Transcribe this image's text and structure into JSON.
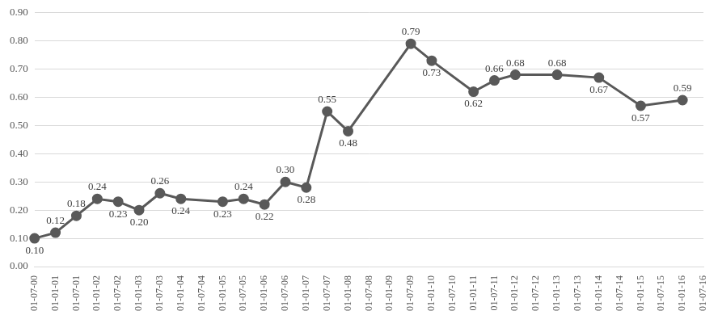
{
  "chart_data": {
    "type": "line",
    "categories": [
      "01-07-00",
      "01-01-01",
      "01-07-01",
      "01-01-02",
      "01-07-02",
      "01-01-03",
      "01-07-03",
      "01-01-04",
      "01-07-04",
      "01-01-05",
      "01-07-05",
      "01-01-06",
      "01-07-06",
      "01-01-07",
      "01-07-07",
      "01-01-08",
      "01-07-08",
      "01-01-09",
      "01-07-09",
      "01-01-10",
      "01-07-10",
      "01-01-11",
      "01-07-11",
      "01-01-12",
      "01-07-12",
      "01-01-13",
      "01-07-13",
      "01-01-14",
      "01-07-14",
      "01-01-15",
      "01-07-15",
      "01-01-16",
      "01-07-16"
    ],
    "values": [
      0.1,
      0.12,
      0.18,
      0.24,
      0.23,
      0.2,
      0.26,
      0.24,
      null,
      0.23,
      0.24,
      0.22,
      0.3,
      0.28,
      0.55,
      0.48,
      null,
      null,
      0.79,
      0.73,
      null,
      0.62,
      0.66,
      0.68,
      null,
      0.68,
      null,
      0.67,
      null,
      0.57,
      null,
      0.59,
      null
    ],
    "value_labels": [
      "0.10",
      "0.12",
      "0.18",
      "0.24",
      "0.23",
      "0.20",
      "0.26",
      "0.24",
      null,
      "0.23",
      "0.24",
      "0.22",
      "0.30",
      "0.28",
      "0.55",
      "0.48",
      null,
      null,
      "0.79",
      "0.73",
      null,
      "0.62",
      "0.66",
      "0.68",
      null,
      "0.68",
      null,
      "0.67",
      null,
      "0.57",
      null,
      "0.59",
      null
    ],
    "color": "#595959",
    "marker": "circle",
    "ylim": [
      0,
      0.9
    ],
    "yticks": [
      {
        "value": 0,
        "label": "0.00"
      },
      {
        "value": 0.1,
        "label": "0.10"
      },
      {
        "value": 0.2,
        "label": "0.20"
      },
      {
        "value": 0.3,
        "label": "0.30"
      },
      {
        "value": 0.4,
        "label": "0.40"
      },
      {
        "value": 0.5,
        "label": "0.50"
      },
      {
        "value": 0.6,
        "label": "0.60"
      },
      {
        "value": 0.7,
        "label": "0.70"
      },
      {
        "value": 0.8,
        "label": "0.80"
      },
      {
        "value": 0.9,
        "label": "0.90"
      }
    ],
    "grid": true,
    "data_labels": true
  }
}
